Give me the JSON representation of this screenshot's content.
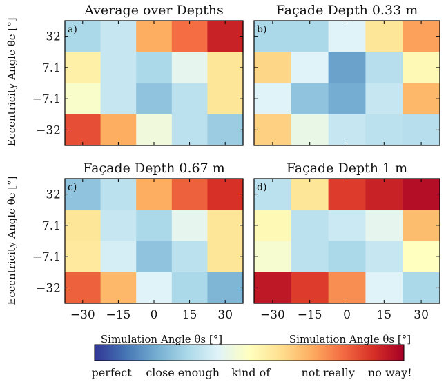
{
  "chart_data": {
    "type": "heatmap",
    "x_categories": [
      "−30",
      "−15",
      "0",
      "15",
      "30"
    ],
    "y_categories": [
      "32",
      "7.1",
      "−7.1",
      "−32"
    ],
    "xlabel": "Simulation Angle θs [°]",
    "ylabel": "Eccentricity Angle θe [°]",
    "value_range": [
      0,
      1
    ],
    "colorscale": "RdYlBu_r",
    "panels": [
      {
        "letter": "a)",
        "title": "Average over Depths",
        "values": [
          [
            0.3,
            0.35,
            0.7,
            0.8,
            0.93
          ],
          [
            0.55,
            0.35,
            0.3,
            0.42,
            0.58
          ],
          [
            0.48,
            0.35,
            0.25,
            0.33,
            0.58
          ],
          [
            0.85,
            0.7,
            0.45,
            0.33,
            0.27
          ]
        ]
      },
      {
        "letter": "b)",
        "title": "Façade Depth 0.33 m",
        "values": [
          [
            0.3,
            0.3,
            0.4,
            0.58,
            0.72
          ],
          [
            0.62,
            0.4,
            0.18,
            0.32,
            0.52
          ],
          [
            0.4,
            0.25,
            0.2,
            0.35,
            0.68
          ],
          [
            0.63,
            0.43,
            0.35,
            0.33,
            0.32
          ]
        ]
      },
      {
        "letter": "c)",
        "title": "Façade Depth 0.67 m",
        "values": [
          [
            0.25,
            0.33,
            0.7,
            0.82,
            0.9
          ],
          [
            0.58,
            0.35,
            0.3,
            0.42,
            0.58
          ],
          [
            0.57,
            0.38,
            0.25,
            0.33,
            0.58
          ],
          [
            0.82,
            0.68,
            0.4,
            0.3,
            0.22
          ]
        ]
      },
      {
        "letter": "d)",
        "title": "Façade Depth 1 m",
        "values": [
          [
            0.33,
            0.58,
            0.88,
            0.93,
            0.97
          ],
          [
            0.52,
            0.33,
            0.36,
            0.42,
            0.67
          ],
          [
            0.47,
            0.33,
            0.3,
            0.35,
            0.5
          ],
          [
            0.95,
            0.88,
            0.75,
            0.4,
            0.3
          ]
        ]
      }
    ],
    "colorbar": {
      "labels": [
        "perfect",
        "close enough",
        "kind of",
        "not really",
        "no way!"
      ]
    }
  }
}
